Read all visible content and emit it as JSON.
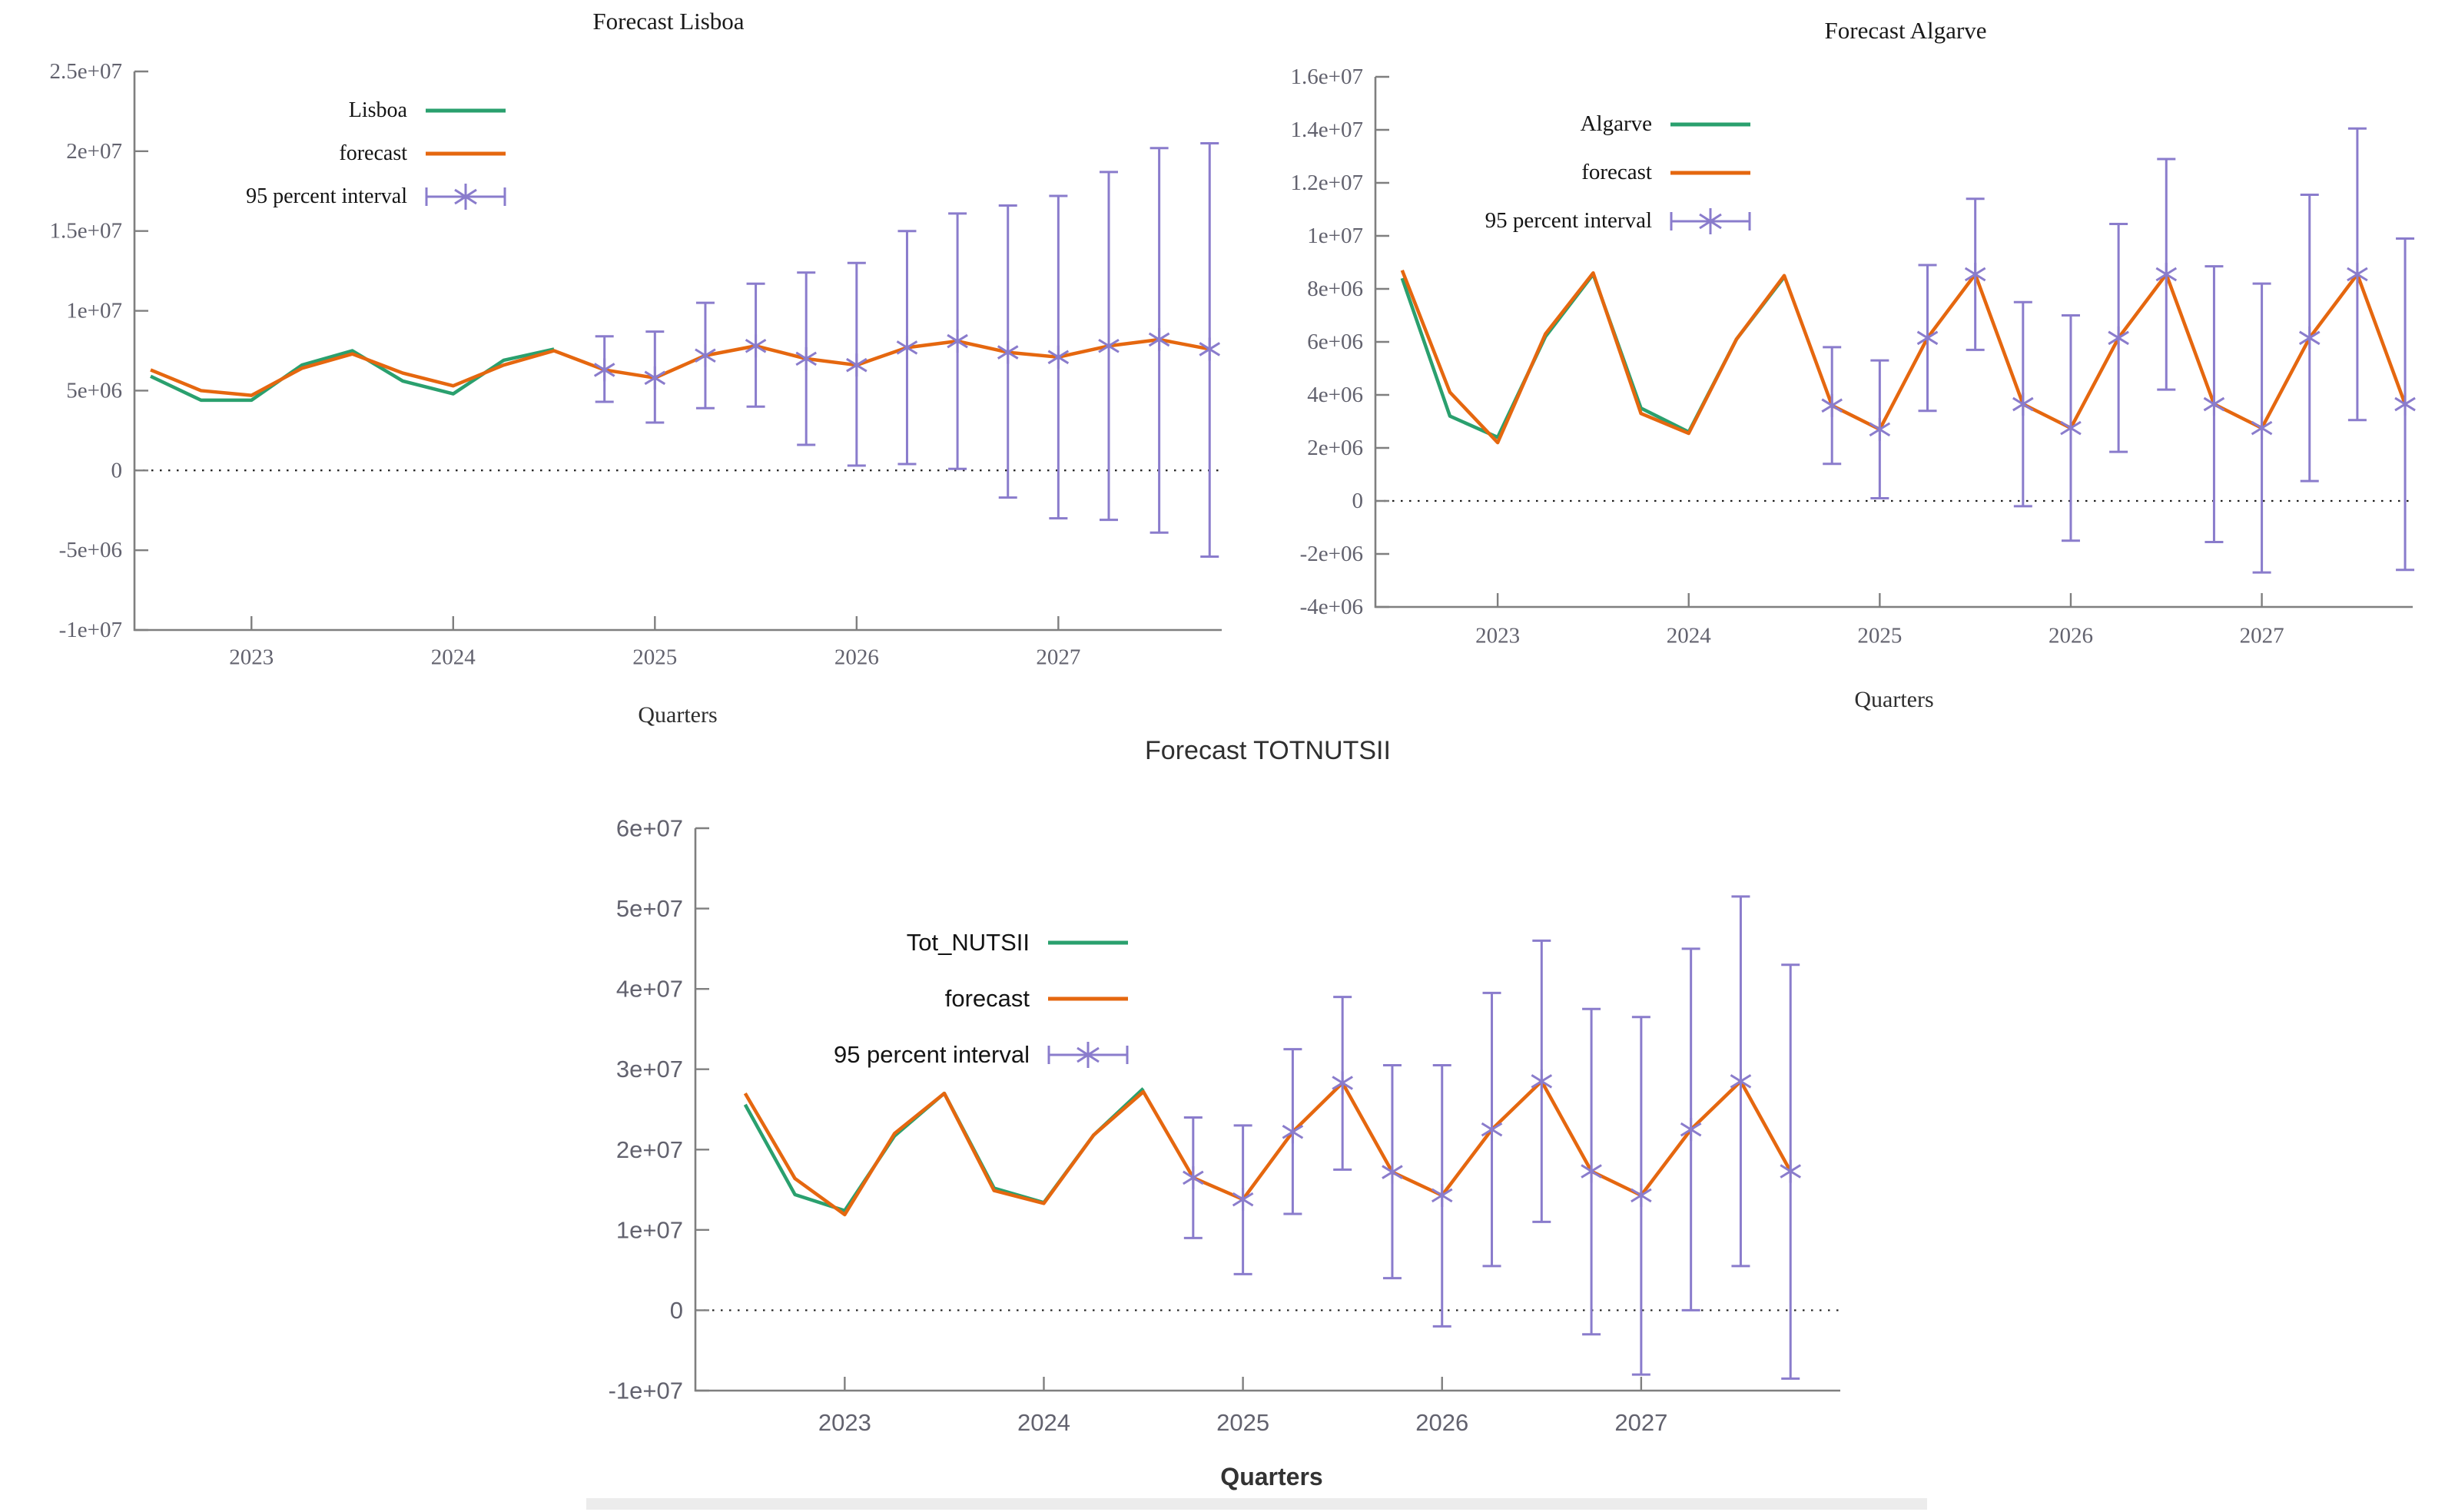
{
  "page": {
    "background": "#ffffff"
  },
  "colors": {
    "observed_line": "#2aa06e",
    "forecast_line": "#e5670f",
    "interval": "#8a7ccc",
    "axis": "#7f7f7f",
    "tick_label": "#62626e",
    "title_text": "#1a1a1a",
    "zero_line": "#1f1f1f",
    "footer_bar": "#ececec"
  },
  "chart_data": [
    {
      "type": "line",
      "title": "Forecast Lisboa",
      "xlabel": "Quarters",
      "legend": [
        {
          "label": "Lisboa",
          "style": "line",
          "color": "observed_line"
        },
        {
          "label": "forecast",
          "style": "line",
          "color": "forecast_line"
        },
        {
          "label": "95 percent interval",
          "style": "errorbar",
          "color": "interval"
        }
      ],
      "xlim": [
        2022.42,
        2027.81
      ],
      "ylim": [
        -10000000,
        25000000
      ],
      "x_ticks": [
        {
          "label": "2023",
          "value": 2023
        },
        {
          "label": "2024",
          "value": 2024
        },
        {
          "label": "2025",
          "value": 2025
        },
        {
          "label": "2026",
          "value": 2026
        },
        {
          "label": "2027",
          "value": 2027
        }
      ],
      "y_ticks": [
        {
          "label": "2.5e+07",
          "value": 25000000
        },
        {
          "label": "2e+07",
          "value": 20000000
        },
        {
          "label": "1.5e+07",
          "value": 15000000
        },
        {
          "label": "1e+07",
          "value": 10000000
        },
        {
          "label": "5e+06",
          "value": 5000000
        },
        {
          "label": "0",
          "value": 0
        },
        {
          "label": "-5e+06",
          "value": -5000000
        },
        {
          "label": "-1e+07",
          "value": -10000000
        }
      ],
      "zero_line": true,
      "series": {
        "observed": {
          "name": "Lisboa",
          "x": [
            2022.5,
            2022.75,
            2023,
            2023.25,
            2023.5,
            2023.75,
            2024,
            2024.25,
            2024.5
          ],
          "y": [
            5900000,
            4400000,
            4400000,
            6600000,
            7500000,
            5600000,
            4800000,
            6900000,
            7600000
          ]
        },
        "fitted": {
          "name": "forecast",
          "x": [
            2022.5,
            2022.75,
            2023,
            2023.25,
            2023.5,
            2023.75,
            2024,
            2024.25,
            2024.5
          ],
          "y": [
            6300000,
            5000000,
            4700000,
            6400000,
            7300000,
            6100000,
            5300000,
            6600000,
            7500000
          ]
        },
        "forecast": {
          "name": "95 percent interval",
          "x": [
            2024.75,
            2025,
            2025.25,
            2025.5,
            2025.75,
            2026,
            2026.25,
            2026.5,
            2026.75,
            2027,
            2027.25,
            2027.5,
            2027.75
          ],
          "y": [
            6300000,
            5800000,
            7200000,
            7800000,
            7000000,
            6600000,
            7700000,
            8100000,
            7400000,
            7100000,
            7800000,
            8200000,
            7600000
          ],
          "lo": [
            4300000,
            3000000,
            3900000,
            4000000,
            1600000,
            300000,
            400000,
            100000,
            -1700000,
            -3000000,
            -3100000,
            -3900000,
            -5400000
          ],
          "hi": [
            8400000,
            8700000,
            10500000,
            11700000,
            12400000,
            13000000,
            15000000,
            16100000,
            16600000,
            17200000,
            18700000,
            20200000,
            20500000
          ]
        }
      }
    },
    {
      "type": "line",
      "title": "Forecast Algarve",
      "xlabel": "Quarters",
      "legend": [
        {
          "label": "Algarve",
          "style": "line",
          "color": "observed_line"
        },
        {
          "label": "forecast",
          "style": "line",
          "color": "forecast_line"
        },
        {
          "label": "95 percent interval",
          "style": "errorbar",
          "color": "interval"
        }
      ],
      "xlim": [
        2022.36,
        2027.79
      ],
      "ylim": [
        -4000000,
        16000000
      ],
      "x_ticks": [
        {
          "label": "2023",
          "value": 2023
        },
        {
          "label": "2024",
          "value": 2024
        },
        {
          "label": "2025",
          "value": 2025
        },
        {
          "label": "2026",
          "value": 2026
        },
        {
          "label": "2027",
          "value": 2027
        }
      ],
      "y_ticks": [
        {
          "label": "1.6e+07",
          "value": 16000000
        },
        {
          "label": "1.4e+07",
          "value": 14000000
        },
        {
          "label": "1.2e+07",
          "value": 12000000
        },
        {
          "label": "1e+07",
          "value": 10000000
        },
        {
          "label": "8e+06",
          "value": 8000000
        },
        {
          "label": "6e+06",
          "value": 6000000
        },
        {
          "label": "4e+06",
          "value": 4000000
        },
        {
          "label": "2e+06",
          "value": 2000000
        },
        {
          "label": "0",
          "value": 0
        },
        {
          "label": "-2e+06",
          "value": -2000000
        },
        {
          "label": "-4e+06",
          "value": -4000000
        }
      ],
      "zero_line": true,
      "series": {
        "observed": {
          "name": "Algarve",
          "x": [
            2022.5,
            2022.75,
            2023,
            2023.25,
            2023.5,
            2023.75,
            2024,
            2024.25,
            2024.5
          ],
          "y": [
            8400000,
            3200000,
            2400000,
            6200000,
            8550000,
            3500000,
            2600000,
            6100000,
            8450000
          ]
        },
        "fitted": {
          "name": "forecast",
          "x": [
            2022.5,
            2022.75,
            2023,
            2023.25,
            2023.5,
            2023.75,
            2024,
            2024.25,
            2024.5
          ],
          "y": [
            8700000,
            4100000,
            2200000,
            6300000,
            8600000,
            3300000,
            2550000,
            6100000,
            8500000
          ]
        },
        "forecast": {
          "name": "95 percent interval",
          "x": [
            2024.75,
            2025,
            2025.25,
            2025.5,
            2025.75,
            2026,
            2026.25,
            2026.5,
            2026.75,
            2027,
            2027.25,
            2027.5,
            2027.75
          ],
          "y": [
            3600000,
            2700000,
            6150000,
            8550000,
            3650000,
            2750000,
            6150000,
            8550000,
            3650000,
            2750000,
            6150000,
            8550000,
            3650000
          ],
          "lo": [
            1400000,
            100000,
            3400000,
            5700000,
            -200000,
            -1500000,
            1850000,
            4200000,
            -1550000,
            -2700000,
            750000,
            3050000,
            -2600000
          ],
          "hi": [
            5800000,
            5300000,
            8900000,
            11400000,
            7500000,
            7000000,
            10450000,
            12900000,
            8850000,
            8200000,
            11550000,
            14050000,
            9900000
          ]
        }
      }
    },
    {
      "type": "line",
      "title": "Forecast TOTNUTSII",
      "xlabel": "Quarters",
      "legend": [
        {
          "label": "Tot_NUTSII",
          "style": "line",
          "color": "observed_line"
        },
        {
          "label": "forecast",
          "style": "line",
          "color": "forecast_line"
        },
        {
          "label": "95 percent interval",
          "style": "errorbar",
          "color": "interval"
        }
      ],
      "xlim": [
        2022.25,
        2028.0
      ],
      "ylim": [
        -10000000,
        60000000
      ],
      "x_ticks": [
        {
          "label": "2023",
          "value": 2023
        },
        {
          "label": "2024",
          "value": 2024
        },
        {
          "label": "2025",
          "value": 2025
        },
        {
          "label": "2026",
          "value": 2026
        },
        {
          "label": "2027",
          "value": 2027
        }
      ],
      "y_ticks": [
        {
          "label": "6e+07",
          "value": 60000000
        },
        {
          "label": "5e+07",
          "value": 50000000
        },
        {
          "label": "4e+07",
          "value": 40000000
        },
        {
          "label": "3e+07",
          "value": 30000000
        },
        {
          "label": "2e+07",
          "value": 20000000
        },
        {
          "label": "1e+07",
          "value": 10000000
        },
        {
          "label": "0",
          "value": 0
        },
        {
          "label": "-1e+07",
          "value": -10000000
        }
      ],
      "zero_line": true,
      "series": {
        "observed": {
          "name": "Tot_NUTSII",
          "x": [
            2022.5,
            2022.75,
            2023,
            2023.25,
            2023.5,
            2023.75,
            2024,
            2024.25,
            2024.5
          ],
          "y": [
            25600000,
            14400000,
            12400000,
            21700000,
            27000000,
            15200000,
            13400000,
            21800000,
            27600000
          ]
        },
        "fitted": {
          "name": "forecast",
          "x": [
            2022.5,
            2022.75,
            2023,
            2023.25,
            2023.5,
            2023.75,
            2024,
            2024.25,
            2024.5
          ],
          "y": [
            27000000,
            16400000,
            11900000,
            22000000,
            27000000,
            14900000,
            13300000,
            21800000,
            27200000
          ]
        },
        "forecast": {
          "name": "95 percent interval",
          "x": [
            2024.75,
            2025,
            2025.25,
            2025.5,
            2025.75,
            2026,
            2026.25,
            2026.5,
            2026.75,
            2027,
            2027.25,
            2027.5,
            2027.75
          ],
          "y": [
            16500000,
            13800000,
            22200000,
            28300000,
            17200000,
            14300000,
            22500000,
            28500000,
            17300000,
            14300000,
            22500000,
            28500000,
            17300000
          ],
          "lo": [
            9000000,
            4500000,
            12000000,
            17500000,
            4000000,
            -2000000,
            5500000,
            11000000,
            -3000000,
            -8000000,
            0,
            5500000,
            -8500000
          ],
          "hi": [
            24000000,
            23000000,
            32500000,
            39000000,
            30500000,
            30500000,
            39500000,
            46000000,
            37500000,
            36500000,
            45000000,
            51500000,
            43000000
          ]
        }
      }
    }
  ]
}
